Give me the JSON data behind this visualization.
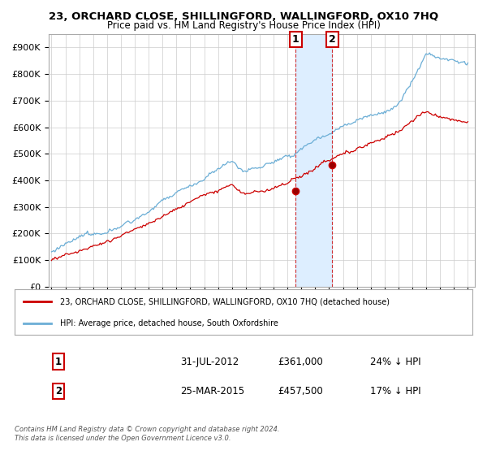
{
  "title": "23, ORCHARD CLOSE, SHILLINGFORD, WALLINGFORD, OX10 7HQ",
  "subtitle": "Price paid vs. HM Land Registry's House Price Index (HPI)",
  "legend_line1": "23, ORCHARD CLOSE, SHILLINGFORD, WALLINGFORD, OX10 7HQ (detached house)",
  "legend_line2": "HPI: Average price, detached house, South Oxfordshire",
  "transaction1_label": "1",
  "transaction1_date": "31-JUL-2012",
  "transaction1_price": "£361,000",
  "transaction1_hpi": "24% ↓ HPI",
  "transaction2_label": "2",
  "transaction2_date": "25-MAR-2015",
  "transaction2_price": "£457,500",
  "transaction2_hpi": "17% ↓ HPI",
  "footer": "Contains HM Land Registry data © Crown copyright and database right 2024.\nThis data is licensed under the Open Government Licence v3.0.",
  "price_color": "#cc0000",
  "hpi_color": "#6baed6",
  "fill_color": "#ddeeff",
  "ylim": [
    0,
    950000
  ],
  "yticks": [
    0,
    100000,
    200000,
    300000,
    400000,
    500000,
    600000,
    700000,
    800000,
    900000
  ],
  "ytick_labels": [
    "£0",
    "£100K",
    "£200K",
    "£300K",
    "£400K",
    "£500K",
    "£600K",
    "£700K",
    "£800K",
    "£900K"
  ],
  "transaction1_x": 2012.58,
  "transaction1_y": 361000,
  "transaction2_x": 2015.23,
  "transaction2_y": 457500,
  "xlim_left": 1994.8,
  "xlim_right": 2025.5,
  "background_color": "#ffffff",
  "grid_color": "#cccccc"
}
